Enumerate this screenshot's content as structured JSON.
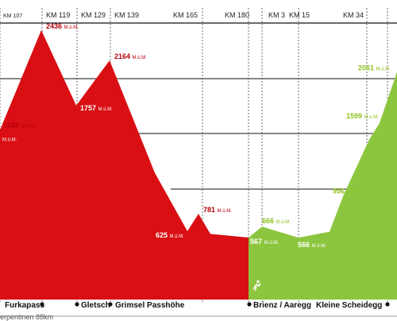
{
  "colors": {
    "red": "#d90f13",
    "green": "#8cc63f",
    "green_label": "#8fbf1f",
    "red_label": "#b8000a"
  },
  "unit": "M.ü.M.",
  "km_labels": [
    "KM 107",
    "KM 119",
    "KM 129",
    "KM 139",
    "KM 165",
    "KM 180",
    "KM 3",
    "KM 15",
    "KM 34"
  ],
  "places": [
    "Furkapass",
    "Gletsch",
    "Grimsel Passhöhe",
    "Brienz / Aaregg",
    "Kleine Scheidegg"
  ],
  "footer": "erpentinen 88km",
  "cyclist_icon": "cyclist-icon",
  "chart_data": {
    "type": "area",
    "ylim": [
      0,
      2700
    ],
    "grid": true,
    "series": [
      {
        "color": "#d90f13",
        "values": [
          {
            "x": 0,
            "y": 1538,
            "label": "1538"
          },
          {
            "x": 52,
            "y": 2436,
            "label": "2436"
          },
          {
            "x": 96,
            "y": 1757,
            "label": "1757"
          },
          {
            "x": 138,
            "y": 2164,
            "label": "2164"
          },
          {
            "x": 195,
            "y": 1150
          },
          {
            "x": 236,
            "y": 625,
            "label": "625"
          },
          {
            "x": 250,
            "y": 781,
            "label": "781"
          },
          {
            "x": 265,
            "y": 600
          },
          {
            "x": 313,
            "y": 567,
            "label": "567"
          }
        ]
      },
      {
        "color": "#8cc63f",
        "values": [
          {
            "x": 313,
            "y": 567
          },
          {
            "x": 330,
            "y": 666,
            "label": "666"
          },
          {
            "x": 376,
            "y": 566,
            "label": "566"
          },
          {
            "x": 415,
            "y": 620
          },
          {
            "x": 433,
            "y": 956,
            "label": "956"
          },
          {
            "x": 465,
            "y": 1450
          },
          {
            "x": 478,
            "y": 1599,
            "label": "1599"
          },
          {
            "x": 500,
            "y": 2061,
            "label": "2061"
          }
        ]
      }
    ]
  }
}
